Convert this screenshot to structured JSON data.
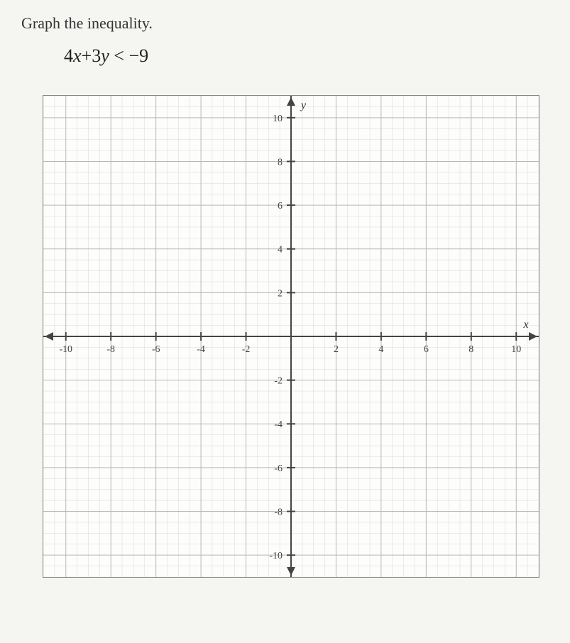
{
  "question": {
    "prompt": "Graph the inequality.",
    "equation_parts": {
      "coef1": "4",
      "var1": "x",
      "op1": "+",
      "coef2": "3",
      "var2": "y",
      "op2": "<",
      "rhs": "−9"
    }
  },
  "graph": {
    "type": "coordinate-plane",
    "xlim": [
      -11,
      11
    ],
    "ylim": [
      -11,
      11
    ],
    "xtick_step": 2,
    "ytick_step": 2,
    "x_labels": [
      "-10",
      "-8",
      "-6",
      "-4",
      "-2",
      "2",
      "4",
      "6",
      "8",
      "10"
    ],
    "y_labels": [
      "10",
      "8",
      "6",
      "4",
      "2",
      "-2",
      "-4",
      "-6",
      "-8",
      "-10"
    ],
    "x_axis_name": "x",
    "y_axis_name": "y",
    "background_color": "#fdfdfb",
    "grid_minor_color": "#d8d8d5",
    "grid_major_color": "#b8b8b5",
    "axis_color": "#444444",
    "label_fontsize": 14,
    "minor_subdivisions": 4
  }
}
